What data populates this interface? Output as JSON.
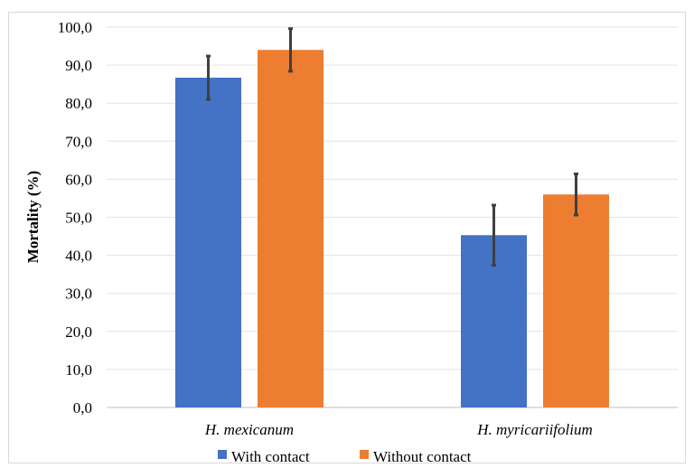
{
  "chart_data": {
    "type": "bar",
    "title": "",
    "xlabel": "",
    "ylabel": "Mortality (%)",
    "ylim": [
      0,
      100
    ],
    "yticks": [
      "0,0",
      "10,0",
      "20,0",
      "30,0",
      "40,0",
      "50,0",
      "60,0",
      "70,0",
      "80,0",
      "90,0",
      "100,0"
    ],
    "categories": [
      "H. mexicanum",
      "H. myricariifolium"
    ],
    "series": [
      {
        "name": "With contact",
        "color": "#4472c4",
        "values": [
          86.7,
          45.3
        ],
        "error": [
          5.7,
          7.9
        ]
      },
      {
        "name": "Without contact",
        "color": "#ed7d31",
        "values": [
          94.0,
          56.0
        ],
        "error": [
          5.6,
          5.4
        ]
      }
    ],
    "grid": true,
    "legend_position": "bottom"
  }
}
